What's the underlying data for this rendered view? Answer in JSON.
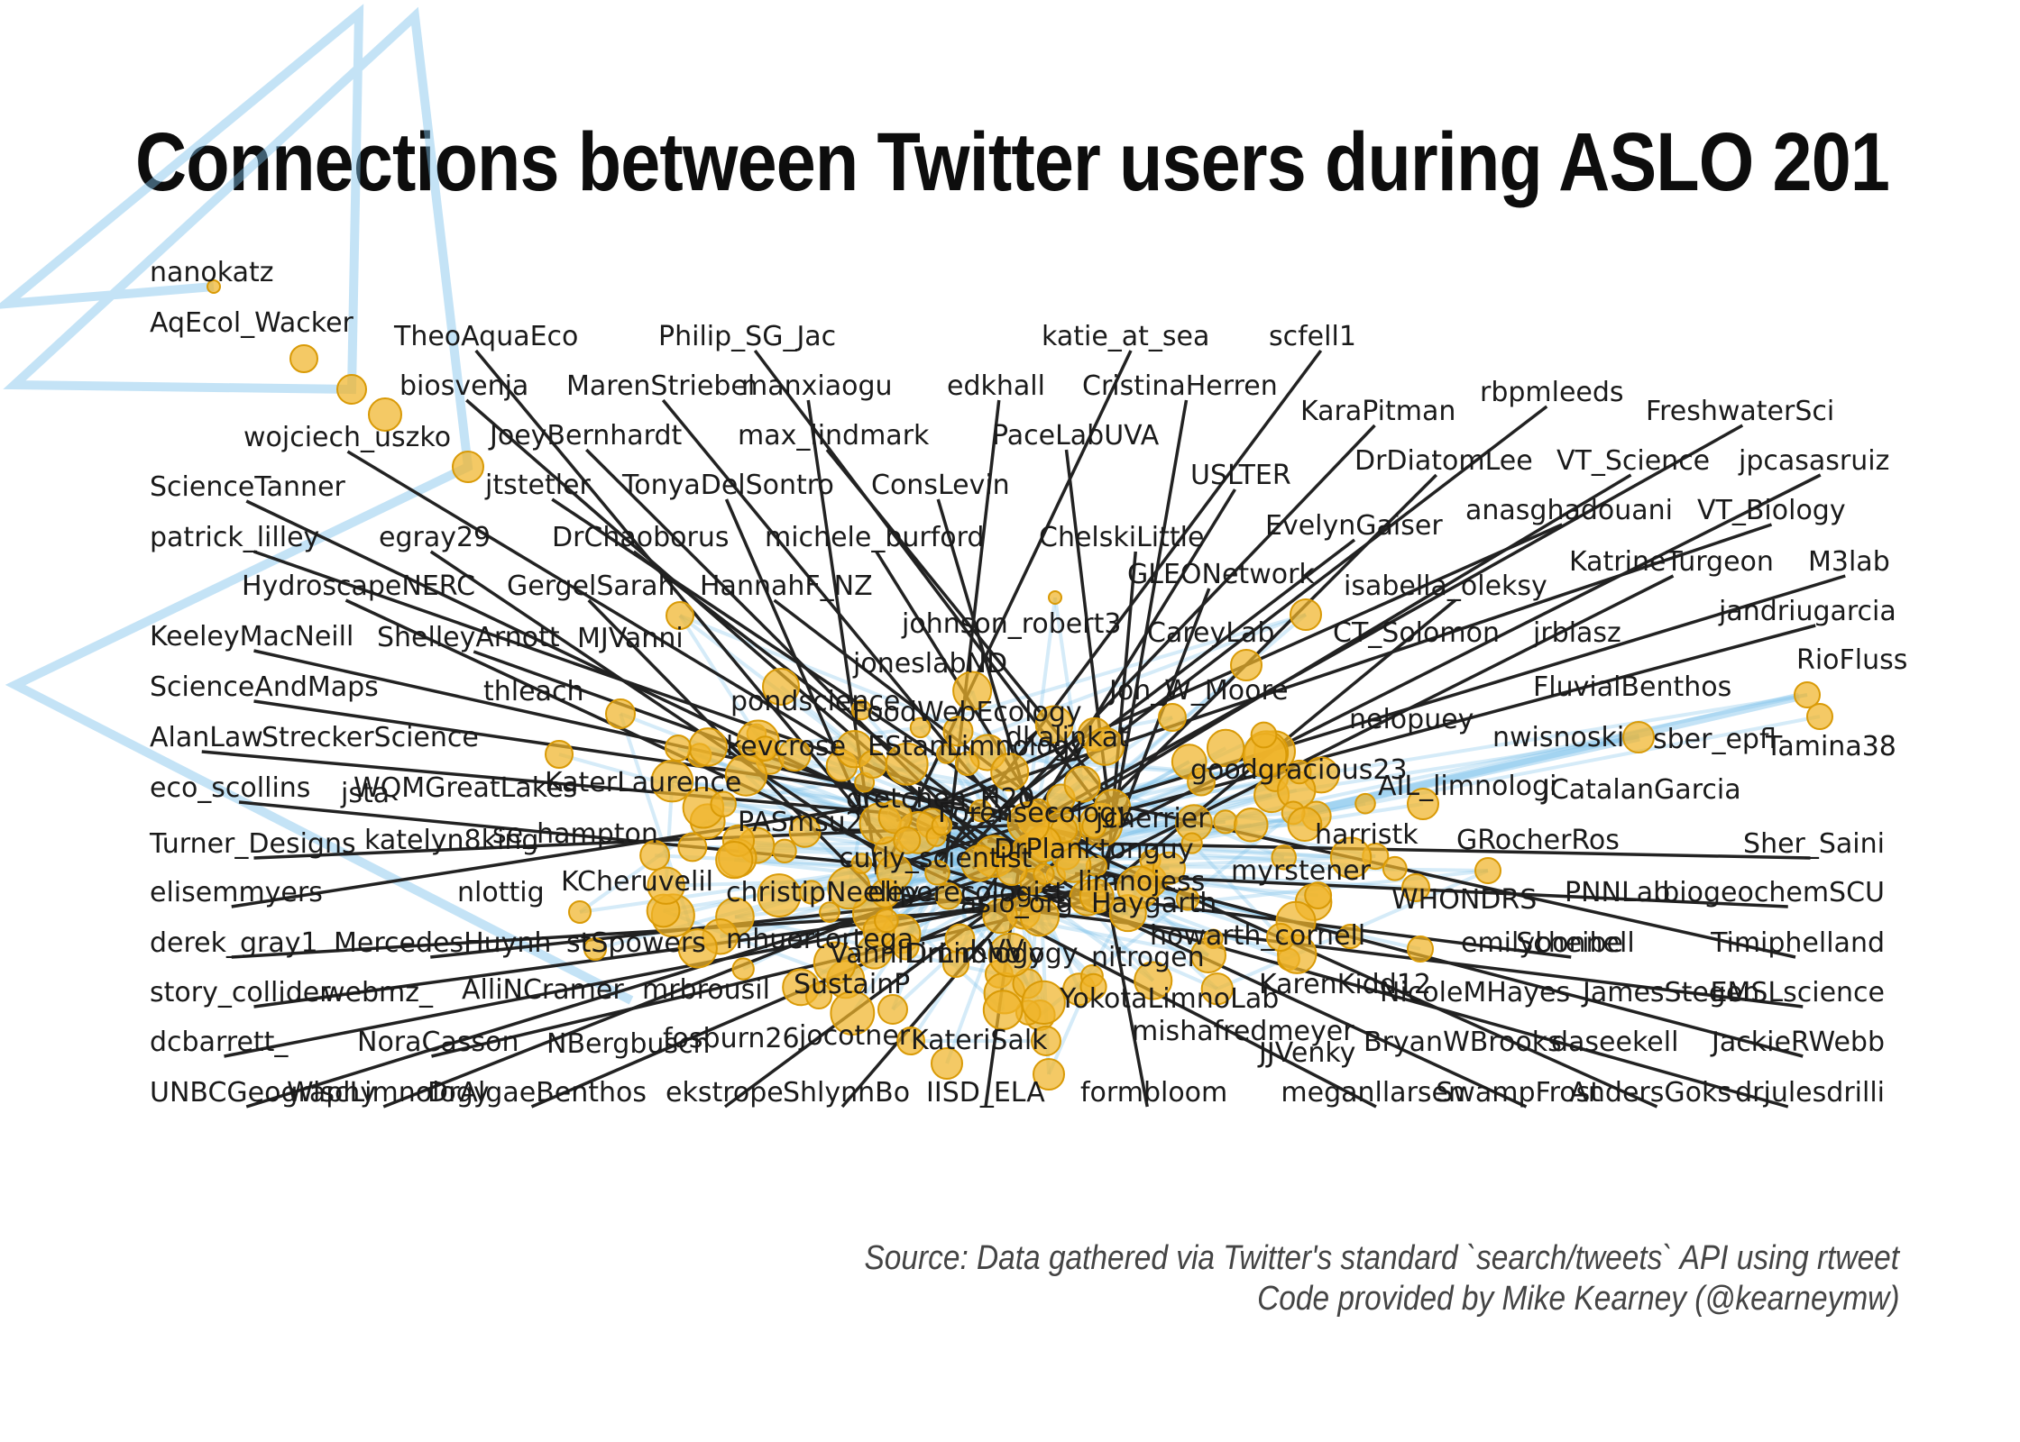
{
  "title": "Connections between Twitter users during ASLO 201",
  "caption": {
    "line1": "Source: Data gathered via Twitter's standard `search/tweets` API using rtweet",
    "line2": "Code provided by Mike Kearney (@kearneymw)"
  },
  "colors": {
    "node_fill": "#f0b429",
    "node_stroke": "#d99a06",
    "edge": "#7cc0ea",
    "leader_line": "#222222",
    "text": "#1a1a1a"
  },
  "hub_labels": [
    "FoodWebEcology",
    "EStanLimnology",
    "dkalinkat",
    "kevcrose",
    "gretchen_H20",
    "Forensecology",
    "PASmsu2",
    "DrPlanktonguy",
    "curly_scientist",
    "jcherrier",
    "goodgracious23",
    "AIL_limnologi",
    "harristk",
    "limnojess",
    "myrstener",
    "eliperecologist",
    "christipNeeley",
    "aslo_org",
    "Haygarth",
    "mhuertortega",
    "VanniLimnology",
    "DrLimnology",
    "KVV",
    "howarth_cornell",
    "nitrogen",
    "KaterLaurence",
    "se_hampton",
    "KCheruvelil",
    "pondscience",
    "joneslabND",
    "nelopuey",
    "YokotaLimnoLab",
    "KarenKidd12",
    "mishafredmeyer",
    "JJVenky",
    "SustainP",
    "jocotner",
    "KateriSalk",
    "fosburn26",
    "NBergbuscn",
    "AlliNCramer",
    "mrbrousil",
    "thleach",
    "MJVanni",
    "johnson_robert3",
    "CareyLab",
    "CT_Solomon",
    "jrblasz",
    "nwisnoski",
    "sber_epfl",
    "Tamina38",
    "RioFluss",
    "FluvialBenthos",
    "JCatalanGarcia",
    "GRocherRos",
    "WHONDRS",
    "PNNLab",
    "emilybonnell",
    "NicoleMHayes",
    "JamesStegen",
    "BryanWBrooks",
    "daseekell",
    "StreckerScience",
    "WQMGreatLakes",
    "jsta",
    "katelyn8king",
    "nlottig",
    "stSpowers",
    "webmz_",
    "Jon_W_Moore"
  ],
  "left_labels": [
    "nanokatz",
    "AqEcol_Wacker",
    "wojciech_uszko",
    "ScienceTanner",
    "patrick_lilley",
    "KeeleyMacNeill",
    "ScienceAndMaps",
    "AlanLaw",
    "eco_scollins",
    "Turner_Designs",
    "elisemmyers",
    "derek_gray1",
    "story_collider",
    "dcbarrett_",
    "UNBCGeography"
  ],
  "upper_labels": [
    "TheoAquaEco",
    "biosvenja",
    "JoeyBernhardt",
    "MarenStriebel",
    "jtstetler",
    "Philip_SG_Jac",
    "manxiaogu",
    "max_lindmark",
    "TonyaDelSontro",
    "egray29",
    "DrChaoborus",
    "HydroscapeNERC",
    "GergelSarah",
    "HannahF_NZ",
    "ShelleyArnott",
    "michele_burford",
    "edkhall",
    "katie_at_sea",
    "CristinaHerren",
    "PaceLabUVA",
    "ConsLevin",
    "ChelskiLittle",
    "scfell1",
    "KaraPitman",
    "USLTER",
    "GLEONetwork",
    "DrDiatomLee",
    "EvelynGaiser",
    "rbpmleeds",
    "FreshwaterSci",
    "VT_Science",
    "jpcasasruiz",
    "anasghadouani",
    "VT_Biology",
    "isabella_oleksy",
    "KatrineTurgeon",
    "M3lab",
    "jandriugarcia"
  ],
  "right_labels": [
    "Sher_Saini",
    "biogeochemSCU",
    "Timiphelland",
    "EMSLscience",
    "JackieRWebb",
    "drjulesdrilli",
    "Scheibe",
    "AndersGoks",
    "SwampFrost",
    "meganllarsen"
  ],
  "lower_labels": [
    "MercedesHuynh",
    "NoraCasson",
    "WiscLimnology",
    "DrAlgaeBenthos",
    "ekstrope",
    "ShlynnBo",
    "IISD_ELA",
    "formbloom"
  ]
}
